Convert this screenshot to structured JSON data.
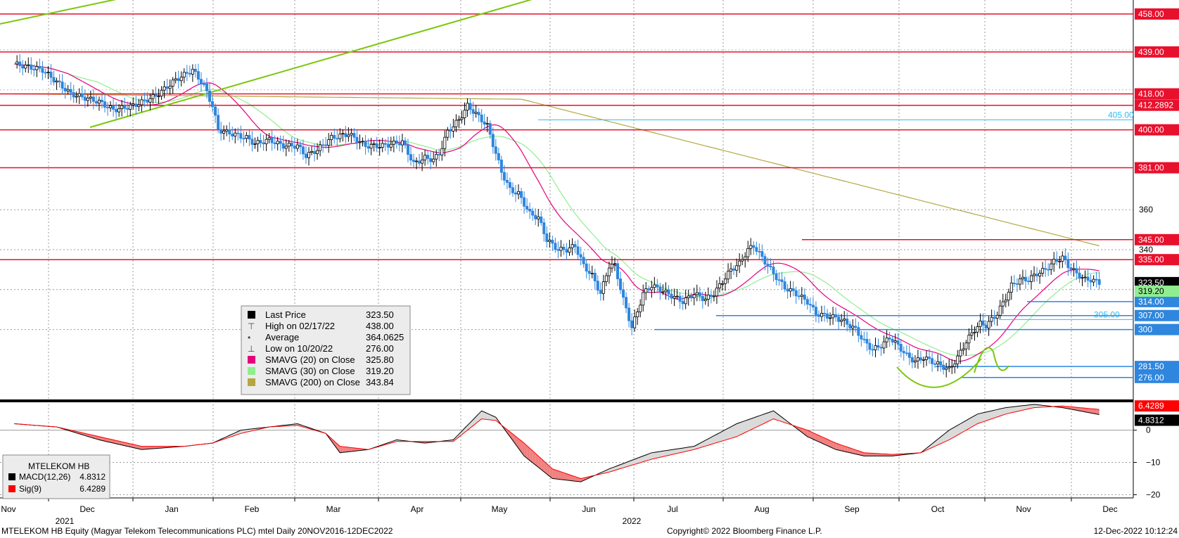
{
  "colors": {
    "up_candle": "#000000",
    "down_candle": "#2e86de",
    "resistance": "#e8112d",
    "support": "#2e86de",
    "level_405": "#33bbee",
    "sma20": "#e6007e",
    "sma30": "#90ee90",
    "sma200": "#b5a642",
    "trend": "#7ac70c",
    "macd": "#000000",
    "signal": "#ff0000",
    "macd_fill_pos": "#d9d9d9",
    "macd_fill_neg": "#f08080"
  },
  "chart_data": [
    {
      "type": "candlestick",
      "instrument": "MTELEKOM HB Equity",
      "ylim": [
        265,
        465
      ],
      "y_ticks": [
        300,
        320,
        340,
        360
      ],
      "grid": true,
      "x_months": [
        "Nov",
        "Dec",
        "Jan",
        "Feb",
        "Mar",
        "Apr",
        "May",
        "Jun",
        "Jul",
        "Aug",
        "Sep",
        "Oct",
        "Nov",
        "Dec"
      ],
      "x_years": [
        "2021",
        "2022"
      ],
      "price_series": [
        [
          0,
          433
        ],
        [
          10,
          430
        ],
        [
          20,
          418
        ],
        [
          30,
          414
        ],
        [
          35,
          410
        ],
        [
          42,
          412
        ],
        [
          50,
          417
        ],
        [
          57,
          425
        ],
        [
          63,
          430
        ],
        [
          67,
          422
        ],
        [
          70,
          412
        ],
        [
          72,
          400
        ],
        [
          77,
          398
        ],
        [
          82,
          396
        ],
        [
          85,
          393
        ],
        [
          90,
          395
        ],
        [
          95,
          392
        ],
        [
          100,
          392
        ],
        [
          103,
          387
        ],
        [
          107,
          390
        ],
        [
          112,
          396
        ],
        [
          118,
          398
        ],
        [
          124,
          392
        ],
        [
          130,
          392
        ],
        [
          137,
          394
        ],
        [
          141,
          383
        ],
        [
          145,
          386
        ],
        [
          148,
          385
        ],
        [
          150,
          388
        ],
        [
          153,
          399
        ],
        [
          157,
          405
        ],
        [
          160,
          412
        ],
        [
          163,
          408
        ],
        [
          167,
          402
        ],
        [
          172,
          379
        ],
        [
          175,
          370
        ],
        [
          178,
          368
        ],
        [
          182,
          358
        ],
        [
          185,
          356
        ],
        [
          188,
          345
        ],
        [
          192,
          340
        ],
        [
          195,
          340
        ],
        [
          198,
          342
        ],
        [
          201,
          332
        ],
        [
          204,
          327
        ],
        [
          207,
          318
        ],
        [
          210,
          332
        ],
        [
          212,
          332
        ],
        [
          215,
          315
        ],
        [
          218,
          301
        ],
        [
          220,
          309
        ],
        [
          222,
          318
        ],
        [
          225,
          322
        ],
        [
          228,
          320
        ],
        [
          232,
          317
        ],
        [
          236,
          314
        ],
        [
          240,
          318
        ],
        [
          244,
          315
        ],
        [
          247,
          318
        ],
        [
          250,
          324
        ],
        [
          253,
          330
        ],
        [
          256,
          333
        ],
        [
          259,
          340
        ],
        [
          261,
          342
        ],
        [
          264,
          336
        ],
        [
          268,
          328
        ],
        [
          272,
          321
        ],
        [
          276,
          318
        ],
        [
          280,
          314
        ],
        [
          283,
          308
        ],
        [
          286,
          307
        ],
        [
          290,
          306
        ],
        [
          293,
          304
        ],
        [
          297,
          300
        ],
        [
          300,
          294
        ],
        [
          303,
          290
        ],
        [
          306,
          292
        ],
        [
          309,
          296
        ],
        [
          312,
          292
        ],
        [
          315,
          287
        ],
        [
          318,
          284
        ],
        [
          321,
          286
        ],
        [
          324,
          284
        ],
        [
          327,
          282
        ],
        [
          330,
          280
        ],
        [
          333,
          286
        ],
        [
          336,
          294
        ],
        [
          339,
          300
        ],
        [
          341,
          303
        ],
        [
          343,
          302
        ],
        [
          347,
          308
        ],
        [
          350,
          316
        ],
        [
          352,
          322
        ],
        [
          355,
          325
        ],
        [
          358,
          325
        ],
        [
          361,
          328
        ],
        [
          364,
          330
        ],
        [
          367,
          334
        ],
        [
          370,
          336
        ],
        [
          372,
          332
        ],
        [
          375,
          328
        ],
        [
          378,
          325
        ],
        [
          380,
          325
        ],
        [
          383,
          323.5
        ]
      ],
      "horizontal_levels": [
        {
          "label": "458.00",
          "value": 458,
          "kind": "resistance"
        },
        {
          "label": "439.00",
          "value": 439,
          "kind": "resistance"
        },
        {
          "label": "418.00",
          "value": 418,
          "kind": "resistance"
        },
        {
          "label": "412.2892",
          "value": 412.2892,
          "kind": "resistance"
        },
        {
          "label": "400.00",
          "value": 400,
          "kind": "resistance"
        },
        {
          "label": "381.00",
          "value": 381,
          "kind": "resistance"
        },
        {
          "label": "345.00",
          "value": 345,
          "kind": "resistance"
        },
        {
          "label": "335.00",
          "value": 335,
          "kind": "resistance"
        },
        {
          "label": "314.00",
          "value": 314,
          "kind": "support"
        },
        {
          "label": "307.00",
          "value": 307,
          "kind": "support"
        },
        {
          "label": "300",
          "value": 300,
          "kind": "support"
        },
        {
          "label": "281.50",
          "value": 281.5,
          "kind": "support"
        },
        {
          "label": "276.00",
          "value": 276,
          "kind": "support"
        }
      ],
      "inline_levels": [
        {
          "label": "405.00",
          "value": 405
        },
        {
          "label": "305.00",
          "value": 305
        }
      ],
      "axis_badges": [
        {
          "label": "323.50",
          "value": 323.5,
          "bg": "#000000",
          "fg": "#ffffff"
        },
        {
          "label": "319.20",
          "value": 319.2,
          "bg": "#90ee90",
          "fg": "#000000"
        }
      ],
      "legend": {
        "rows": [
          {
            "symbol": "black-square",
            "label": "Last Price",
            "value": "323.50"
          },
          {
            "symbol": "high",
            "label": "High on 02/17/22",
            "value": "438.00"
          },
          {
            "symbol": "average",
            "label": "Average",
            "value": "364.0625"
          },
          {
            "symbol": "low",
            "label": "Low on 10/20/22",
            "value": "276.00"
          },
          {
            "symbol": "magenta-square",
            "label": "SMAVG (20)  on Close",
            "value": "325.80"
          },
          {
            "symbol": "lightgreen-square",
            "label": "SMAVG (30)  on Close",
            "value": "319.20"
          },
          {
            "symbol": "olive-square",
            "label": "SMAVG (200)  on Close",
            "value": "343.84"
          }
        ]
      }
    },
    {
      "type": "line",
      "title": "MTELEKOM HB",
      "ylim": [
        -21,
        8
      ],
      "y_ticks": [
        0,
        -10,
        -20
      ],
      "y_tick_labels": [
        "0",
        "−10",
        "−20"
      ],
      "badges": [
        {
          "label": "6.4289",
          "value": 6.4289,
          "bg": "#ff0000",
          "fg": "#ffffff"
        },
        {
          "label": "4.8312",
          "value": 4.8312,
          "bg": "#000000",
          "fg": "#ffffff"
        }
      ],
      "series": [
        {
          "name": "MACD(12,26)",
          "last": "4.8312",
          "values": [
            [
              0,
              2
            ],
            [
              15,
              1
            ],
            [
              30,
              -3
            ],
            [
              45,
              -6
            ],
            [
              60,
              -5
            ],
            [
              70,
              -4
            ],
            [
              80,
              0
            ],
            [
              90,
              1
            ],
            [
              100,
              2
            ],
            [
              110,
              -1
            ],
            [
              115,
              -7
            ],
            [
              125,
              -6
            ],
            [
              135,
              -3
            ],
            [
              145,
              -4
            ],
            [
              155,
              -3
            ],
            [
              165,
              6
            ],
            [
              170,
              4
            ],
            [
              180,
              -8
            ],
            [
              190,
              -15
            ],
            [
              200,
              -16
            ],
            [
              210,
              -12
            ],
            [
              225,
              -7
            ],
            [
              240,
              -5
            ],
            [
              255,
              2
            ],
            [
              268,
              6
            ],
            [
              280,
              -2
            ],
            [
              290,
              -6
            ],
            [
              300,
              -8
            ],
            [
              310,
              -8
            ],
            [
              320,
              -7
            ],
            [
              330,
              0
            ],
            [
              340,
              5
            ],
            [
              350,
              7
            ],
            [
              360,
              8
            ],
            [
              370,
              7
            ],
            [
              383,
              4.8312
            ]
          ]
        },
        {
          "name": "Sig(9)",
          "last": "6.4289",
          "values": [
            [
              0,
              2
            ],
            [
              15,
              1
            ],
            [
              30,
              -2
            ],
            [
              45,
              -5
            ],
            [
              60,
              -5
            ],
            [
              70,
              -4
            ],
            [
              80,
              -1
            ],
            [
              90,
              1
            ],
            [
              100,
              1.5
            ],
            [
              110,
              -1
            ],
            [
              115,
              -5
            ],
            [
              125,
              -6
            ],
            [
              135,
              -3.5
            ],
            [
              145,
              -3.5
            ],
            [
              155,
              -3.5
            ],
            [
              165,
              3.5
            ],
            [
              170,
              3
            ],
            [
              180,
              -4
            ],
            [
              190,
              -12
            ],
            [
              200,
              -15
            ],
            [
              210,
              -13
            ],
            [
              225,
              -9
            ],
            [
              240,
              -6
            ],
            [
              255,
              -2
            ],
            [
              268,
              3.5
            ],
            [
              280,
              0
            ],
            [
              290,
              -4
            ],
            [
              300,
              -7
            ],
            [
              310,
              -7.5
            ],
            [
              320,
              -7
            ],
            [
              330,
              -3
            ],
            [
              340,
              2
            ],
            [
              350,
              5
            ],
            [
              360,
              7
            ],
            [
              370,
              7.5
            ],
            [
              383,
              6.4289
            ]
          ]
        }
      ]
    }
  ],
  "footer": {
    "left": "MTELEKOM HB Equity (Magyar Telekom Telecommunications PLC) mtel  Daily 20NOV2016-12DEC2022",
    "center": "Copyright© 2022 Bloomberg Finance L.P.",
    "right": "12-Dec-2022 10:12:24"
  }
}
